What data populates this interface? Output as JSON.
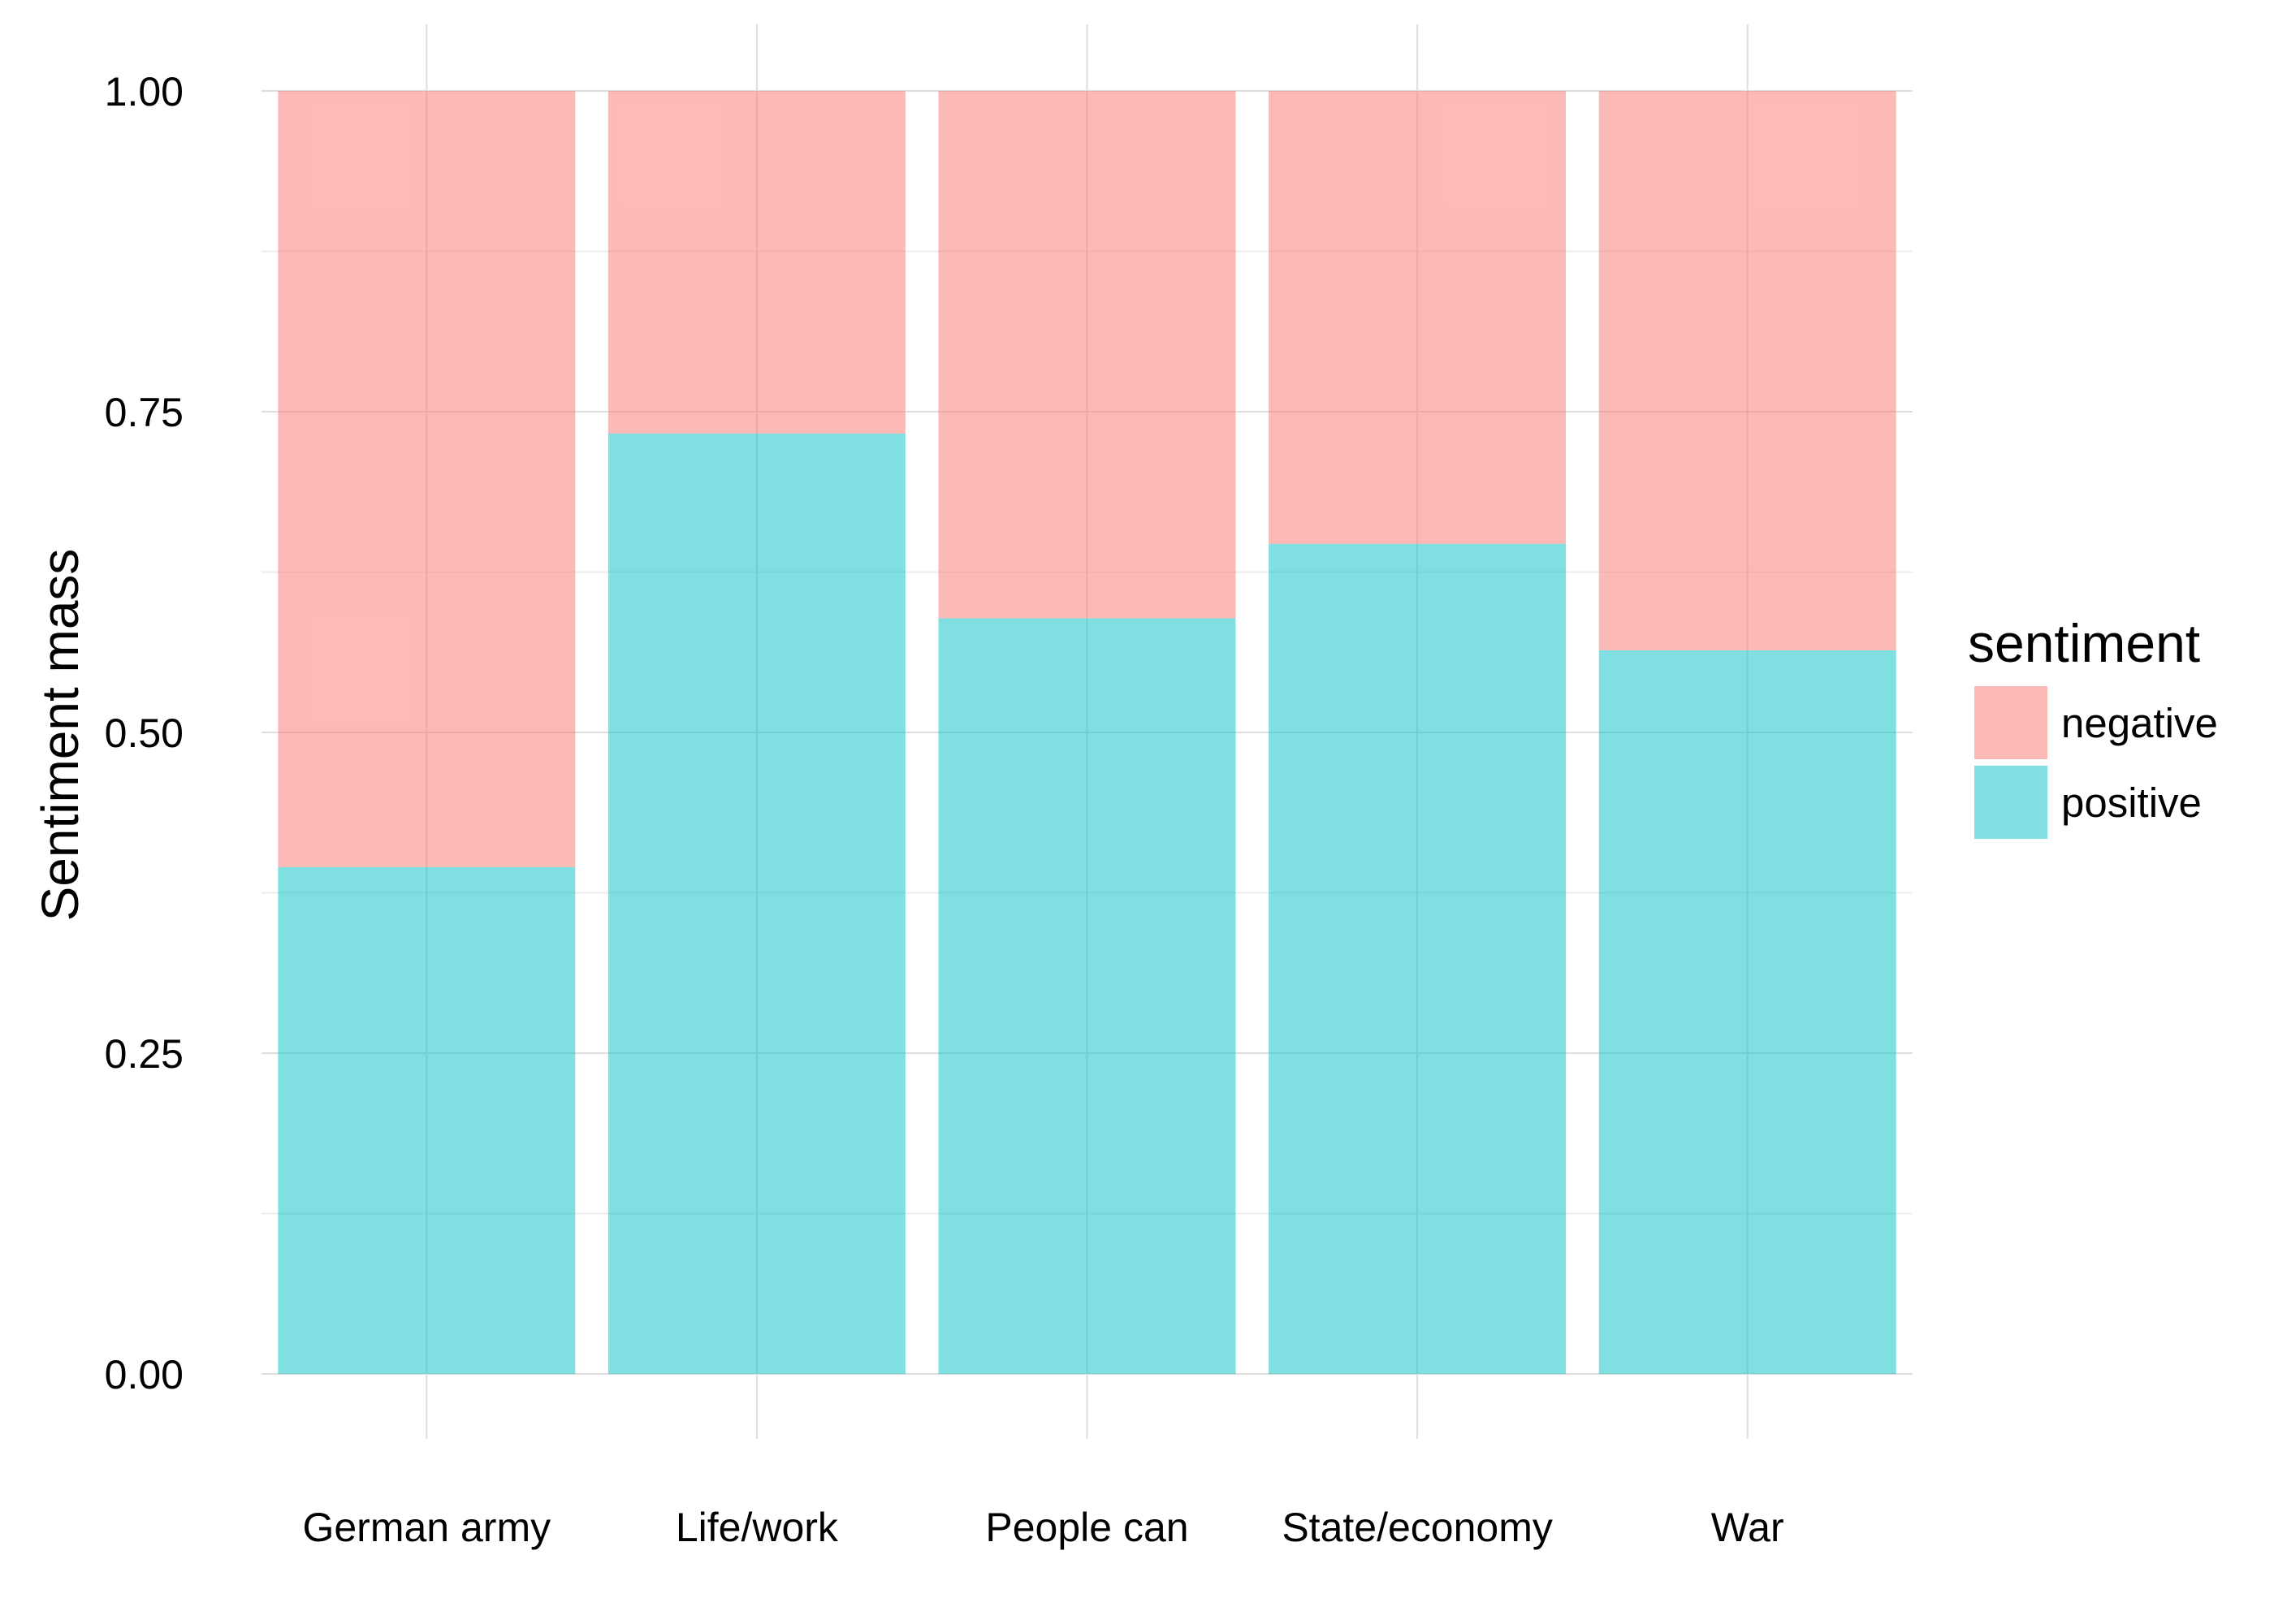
{
  "chart_data": {
    "type": "bar",
    "stacked": true,
    "categories": [
      "German army",
      "Life/work",
      "People can",
      "State/economy",
      "War"
    ],
    "series": [
      {
        "name": "positive",
        "values": [
          0.395,
          0.733,
          0.589,
          0.647,
          0.564
        ],
        "color": "#00BFC4"
      },
      {
        "name": "negative",
        "values": [
          0.605,
          0.267,
          0.411,
          0.353,
          0.436
        ],
        "color": "#F8766D"
      }
    ],
    "bar_opacity": 0.5,
    "ylabel": "Sentiment mass",
    "xlabel": "",
    "ylim": [
      0,
      1
    ],
    "yticks": [
      "0.00",
      "0.25",
      "0.50",
      "0.75",
      "1.00"
    ],
    "grid": true,
    "legend": {
      "title": "sentiment",
      "position": "right",
      "entries": [
        {
          "label": "negative",
          "color": "#F8766D"
        },
        {
          "label": "positive",
          "color": "#00BFC4"
        }
      ]
    }
  }
}
